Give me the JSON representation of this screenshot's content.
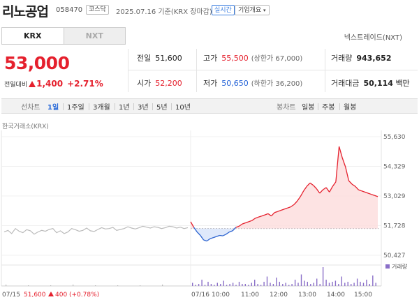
{
  "header": {
    "name": "리노공업",
    "code": "058470",
    "market": "코스닥",
    "date": "2025.07.16 기준(KRX 장마감)",
    "realtime_label": "실시간",
    "company_label": "기업개요"
  },
  "tabs": [
    "KRX",
    "NXT"
  ],
  "nxt_link": "넥스트레이드(NXT)",
  "price": {
    "current": "53,000",
    "change_label": "전일대비",
    "change": "1,400",
    "change_pct": "+2.71%"
  },
  "metrics": {
    "prev_close_label": "전일",
    "prev_close": "51,600",
    "high_label": "고가",
    "high": "55,500",
    "upper_limit": "(상한가 67,000)",
    "volume_label": "거래량",
    "volume": "943,652",
    "open_label": "시가",
    "open": "52,200",
    "low_label": "저가",
    "low": "50,650",
    "lower_limit": "(하한가 36,200)",
    "amount_label": "거래대금",
    "amount": "50,114",
    "amount_unit": "백만"
  },
  "period_bar": {
    "line_chart_label": "선차트",
    "periods": [
      "1일",
      "1주일",
      "3개월",
      "1년",
      "3년",
      "5년",
      "10년"
    ],
    "selected": "1일",
    "candle_label": "봉차트",
    "candle_periods": [
      "일봉",
      "주봉",
      "월봉"
    ]
  },
  "chart_source": "한국거래소(KRX)",
  "chart_data": {
    "type": "line",
    "y_ticks": [
      "55,630",
      "54,329",
      "53,029",
      "51,728",
      "50,427"
    ],
    "ylim": [
      50427,
      55630
    ],
    "x_labels_left": [
      "07/15",
      "07/16"
    ],
    "x_ticks": [
      "10:00",
      "11:00",
      "12:00",
      "13:00",
      "14:00",
      "15:00"
    ],
    "baseline": 51600,
    "legend_volume": "거래량",
    "prev_day_summary": {
      "date": "07/15",
      "close": "51,600",
      "change": "400",
      "change_pct": "(+0.78%)"
    },
    "colors": {
      "up": "#e5202d",
      "down": "#2a62d0",
      "prev": "#bbbbbb",
      "volume": "#8a6fc8"
    },
    "prev_day_series": [
      51450,
      51520,
      51380,
      51600,
      51480,
      51420,
      51550,
      51500,
      51350,
      51450,
      51520,
      51480,
      51560,
      51600,
      51420,
      51500,
      51380,
      51450,
      51600,
      51550,
      51480,
      51520,
      51620,
      51500,
      51470,
      51560,
      51640,
      51580,
      51600,
      51650,
      51520,
      51560,
      51600,
      51680,
      51620,
      51580,
      51640,
      51700,
      51660,
      51620,
      51680,
      51650,
      51600,
      51640,
      51700,
      51680,
      51620,
      51660,
      51600,
      51640
    ],
    "today_series": [
      51900,
      51650,
      51450,
      51300,
      51100,
      51050,
      51150,
      51200,
      51250,
      51300,
      51280,
      51350,
      51450,
      51500,
      51650,
      51700,
      51800,
      51850,
      51900,
      51950,
      52050,
      52100,
      52150,
      52200,
      52250,
      52150,
      52300,
      52350,
      52400,
      52450,
      52500,
      52550,
      52650,
      52800,
      53000,
      53250,
      53450,
      53600,
      53500,
      53350,
      53150,
      53300,
      53400,
      53200,
      53450,
      53650,
      55200,
      54700,
      54300,
      53700,
      53550,
      53450,
      53300,
      53250,
      53200,
      53150,
      53100,
      53050,
      53000
    ]
  }
}
